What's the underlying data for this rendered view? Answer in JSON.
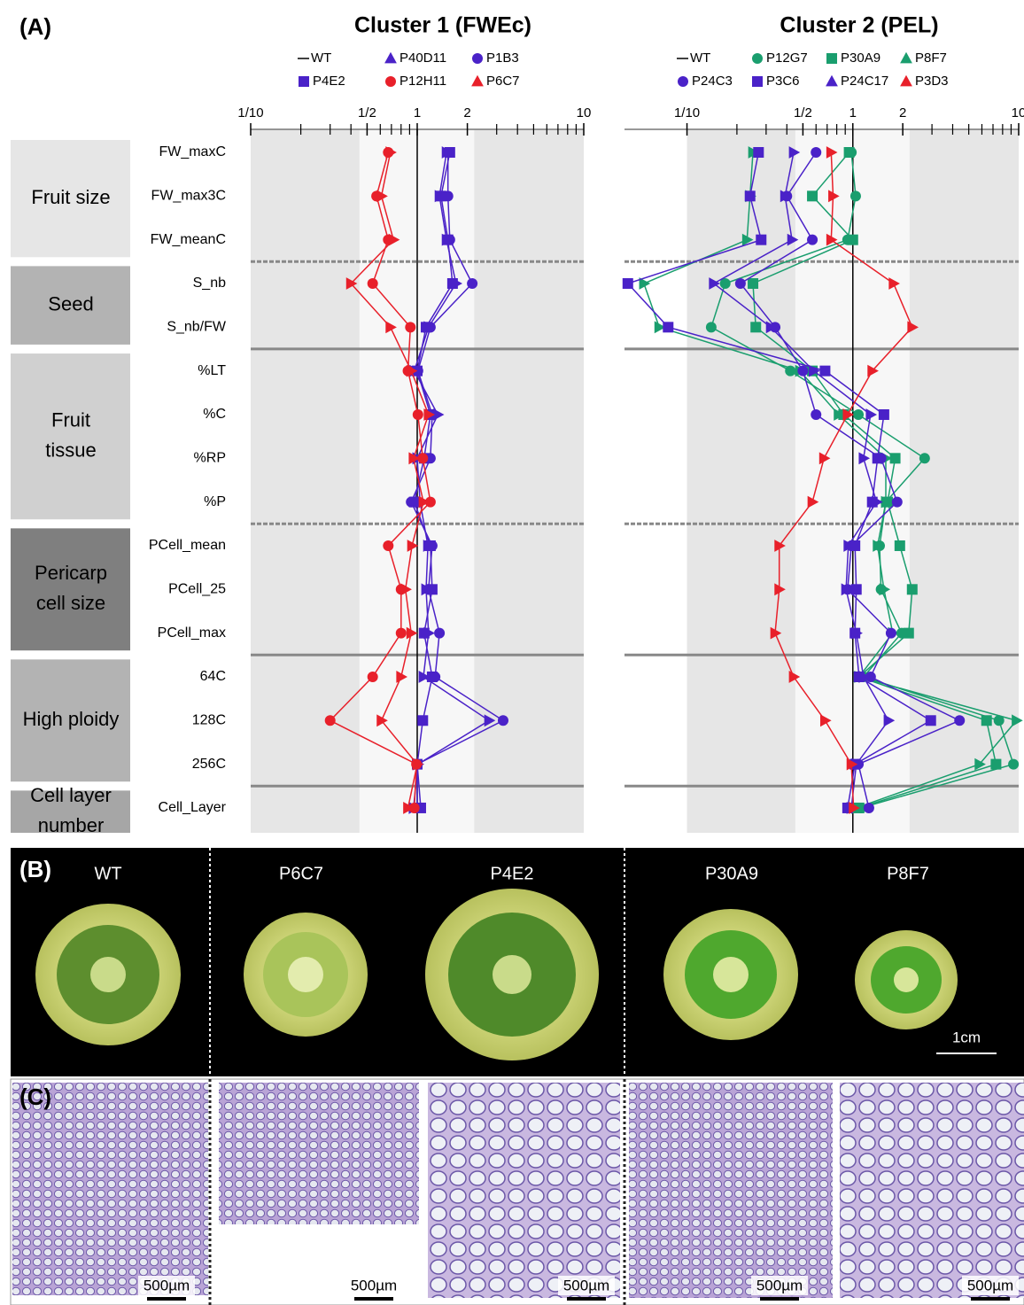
{
  "panel_labels": [
    "(A)",
    "(B)",
    "(C)"
  ],
  "row_groups": [
    {
      "label": [
        "Fruit size"
      ],
      "color": "#e6e6e6",
      "separator": "dashed",
      "categories": [
        "FW_maxC",
        "FW_max3C",
        "FW_meanC"
      ]
    },
    {
      "label": [
        "Seed"
      ],
      "color": "#b3b3b3",
      "separator": "solid",
      "categories": [
        "S_nb",
        "S_nb/FW"
      ]
    },
    {
      "label": [
        "Fruit",
        "tissue"
      ],
      "color": "#d0d0d0",
      "separator": "dashed",
      "categories": [
        "%LT",
        "%C",
        "%RP",
        "%P"
      ]
    },
    {
      "label": [
        "Pericarp",
        "cell size"
      ],
      "color": "#7f7f7f",
      "separator": "solid",
      "categories": [
        "PCell_mean",
        "PCell_25",
        "PCell_max"
      ]
    },
    {
      "label": [
        "High ploidy"
      ],
      "color": "#b3b3b3",
      "separator": "solid",
      "categories": [
        "64C",
        "128C",
        "256C"
      ]
    },
    {
      "label": [
        "Cell layer",
        "number"
      ],
      "color": "#a6a6a6",
      "categories": [
        "Cell_Layer"
      ]
    }
  ],
  "chart_data": [
    {
      "type": "dot-profile",
      "title": "Cluster 1 (FWEc)",
      "xscale": "log",
      "xlim": [
        0.1,
        10
      ],
      "xticks": [
        {
          "value": 0.1,
          "label": "1/10"
        },
        {
          "value": 0.5,
          "label": "1/2"
        },
        1,
        2,
        10
      ],
      "xminor_ticks": [
        0.2,
        0.3,
        0.4,
        0.6,
        0.7,
        0.8,
        0.9,
        3,
        4,
        5,
        6,
        7,
        8,
        9
      ],
      "band": [
        0.45,
        2.2
      ],
      "reference": {
        "name": "WT",
        "value": 1
      },
      "series": [
        {
          "name": "P40D11",
          "color": "#4a22c8",
          "marker": "triangle",
          "values": [
            1.5,
            1.36,
            1.5,
            1.71,
            1.17,
            0.96,
            1.33,
            1.0,
            1.04,
            1.16,
            1.13,
            1.17,
            1.09,
            2.7,
            1.01,
            0.95
          ]
        },
        {
          "name": "P1B3",
          "color": "#4a22c8",
          "marker": "circle",
          "values": [
            1.53,
            1.53,
            1.57,
            2.14,
            1.2,
            1.01,
            1.23,
            1.2,
            0.92,
            1.23,
            1.17,
            1.36,
            1.28,
            3.28,
            1.0,
            1.0
          ]
        },
        {
          "name": "P4E2",
          "color": "#4a22c8",
          "marker": "square",
          "values": [
            1.57,
            1.39,
            1.53,
            1.63,
            1.13,
            1.0,
            1.2,
            1.1,
            0.96,
            1.2,
            1.23,
            1.1,
            1.23,
            1.08,
            1.0,
            1.05
          ]
        },
        {
          "name": "P12H11",
          "color": "#e8202a",
          "marker": "circle",
          "values": [
            0.67,
            0.57,
            0.67,
            0.54,
            0.91,
            0.88,
            1.01,
            1.08,
            1.2,
            0.67,
            0.8,
            0.8,
            0.54,
            0.3,
            0.99,
            0.96
          ]
        },
        {
          "name": "P6C7",
          "color": "#e8202a",
          "marker": "triangle",
          "values": [
            0.69,
            0.61,
            0.72,
            0.4,
            0.69,
            0.92,
            1.17,
            0.95,
            1.09,
            0.93,
            0.85,
            0.92,
            0.8,
            0.61,
            1.0,
            0.88
          ]
        }
      ]
    },
    {
      "type": "dot-profile",
      "title": "Cluster 2 (PEL)",
      "xscale": "log",
      "xlim": [
        0.042,
        10
      ],
      "xticks": [
        {
          "value": 0.1,
          "label": "1/10"
        },
        {
          "value": 0.5,
          "label": "1/2"
        },
        1,
        2,
        10
      ],
      "xminor_ticks": [
        0.2,
        0.3,
        0.4,
        0.6,
        0.7,
        0.8,
        0.9,
        3,
        4,
        5,
        6,
        7,
        8,
        9
      ],
      "band": [
        0.45,
        2.2
      ],
      "reference": {
        "name": "WT",
        "value": 1
      },
      "series": [
        {
          "name": "P12G7",
          "color": "#1a9e6e",
          "marker": "circle",
          "values": [
            0.98,
            1.04,
            0.93,
            0.17,
            0.14,
            0.42,
            1.08,
            2.71,
            1.58,
            1.45,
            1.48,
            1.97,
            1.16,
            7.6,
            9.3,
            1.12
          ]
        },
        {
          "name": "P30A9",
          "color": "#1a9e6e",
          "marker": "square",
          "values": [
            0.95,
            0.57,
            1.0,
            0.25,
            0.26,
            0.57,
            0.88,
            1.8,
            1.62,
            1.92,
            2.28,
            2.17,
            1.09,
            6.4,
            7.3,
            1.09
          ]
        },
        {
          "name": "P8F7",
          "color": "#1a9e6e",
          "marker": "triangle",
          "values": [
            0.25,
            0.24,
            0.23,
            0.055,
            0.068,
            0.48,
            0.82,
            1.58,
            1.58,
            1.41,
            1.54,
            1.74,
            1.09,
            9.7,
            5.8,
            1.05
          ]
        },
        {
          "name": "P24C3",
          "color": "#4a22c8",
          "marker": "circle",
          "values": [
            0.6,
            0.4,
            0.57,
            0.21,
            0.34,
            0.5,
            0.6,
            1.48,
            1.85,
            0.98,
            0.93,
            1.7,
            1.28,
            4.4,
            1.08,
            1.25
          ]
        },
        {
          "name": "P3C6",
          "color": "#4a22c8",
          "marker": "square",
          "values": [
            0.27,
            0.24,
            0.28,
            0.044,
            0.077,
            0.68,
            1.54,
            1.41,
            1.31,
            1.03,
            1.05,
            1.03,
            1.09,
            2.95,
            1.03,
            0.93
          ]
        },
        {
          "name": "P24C17",
          "color": "#4a22c8",
          "marker": "triangle",
          "values": [
            0.44,
            0.39,
            0.43,
            0.145,
            0.32,
            0.58,
            1.28,
            1.16,
            1.39,
            0.94,
            0.91,
            1.05,
            1.16,
            1.64,
            1.05,
            0.98
          ]
        },
        {
          "name": "P3D3",
          "color": "#e8202a",
          "marker": "triangle",
          "values": [
            0.74,
            0.76,
            0.74,
            1.76,
            2.28,
            1.31,
            0.93,
            0.67,
            0.57,
            0.36,
            0.36,
            0.34,
            0.44,
            0.68,
            0.98,
            1.01
          ]
        }
      ]
    }
  ],
  "photos_b": {
    "labels": [
      "WT",
      "P6C7",
      "P4E2",
      "P30A9",
      "P8F7"
    ],
    "scale": "1cm"
  },
  "photos_c": {
    "scales": [
      "500µm",
      "500µm",
      "500µm",
      "500µm",
      "500µm"
    ]
  }
}
